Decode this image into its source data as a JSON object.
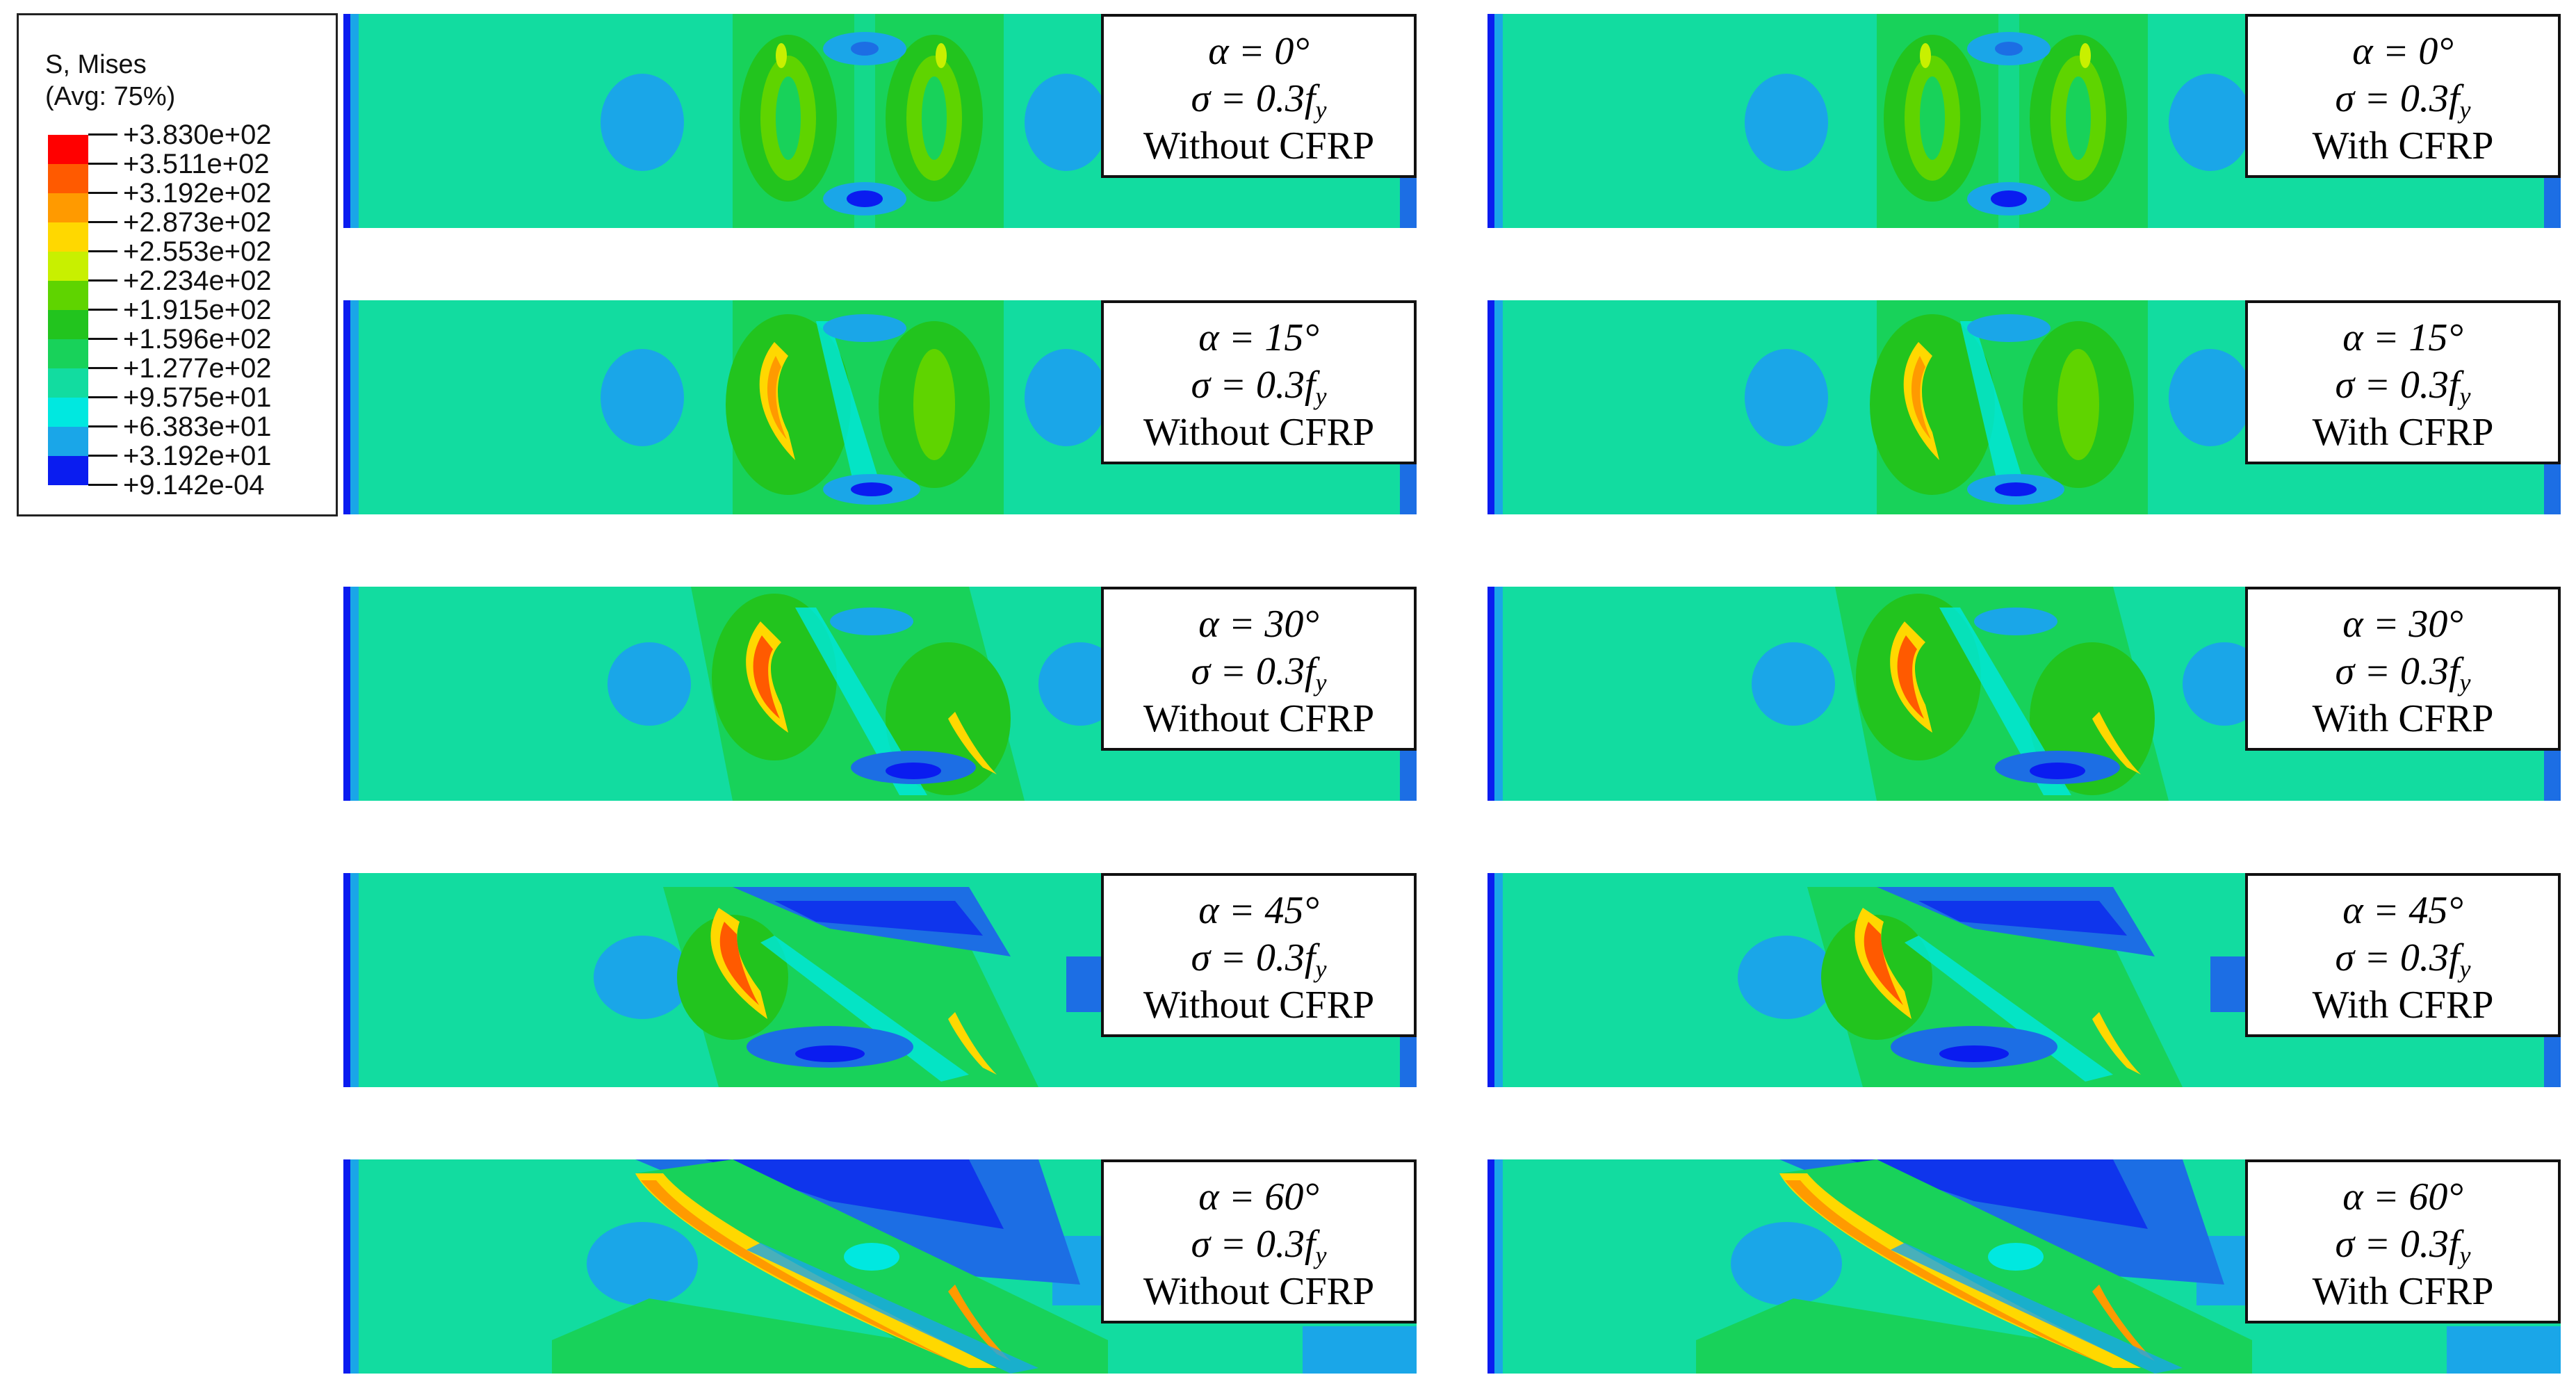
{
  "legend": {
    "title": "S, Mises",
    "subtitle": "(Avg: 75%)",
    "items": [
      {
        "value": "+3.830e+02",
        "color": "#ff0000"
      },
      {
        "value": "+3.511e+02",
        "color": "#ff5a00"
      },
      {
        "value": "+3.192e+02",
        "color": "#ff9a00"
      },
      {
        "value": "+2.873e+02",
        "color": "#ffd800"
      },
      {
        "value": "+2.553e+02",
        "color": "#c8f000"
      },
      {
        "value": "+2.234e+02",
        "color": "#5fd400"
      },
      {
        "value": "+1.915e+02",
        "color": "#22c41e"
      },
      {
        "value": "+1.596e+02",
        "color": "#18d25a"
      },
      {
        "value": "+1.277e+02",
        "color": "#12dca0"
      },
      {
        "value": "+9.575e+01",
        "color": "#00e8e0"
      },
      {
        "value": "+6.383e+01",
        "color": "#1aa6e8"
      },
      {
        "value": "+3.192e+01",
        "color": "#1c6ee4"
      },
      {
        "value": "+9.142e-04",
        "color": "#0a1cf0"
      }
    ]
  },
  "panels": [
    {
      "alpha": "α = 0°",
      "sigma_prefix": "σ = 0.3",
      "f": "f",
      "sub": "y",
      "cfrp": "Without CFRP"
    },
    {
      "alpha": "α = 0°",
      "sigma_prefix": "σ = 0.3",
      "f": "f",
      "sub": "y",
      "cfrp": "With CFRP"
    },
    {
      "alpha": "α = 15°",
      "sigma_prefix": "σ = 0.3",
      "f": "f",
      "sub": "y",
      "cfrp": "Without CFRP"
    },
    {
      "alpha": "α = 15°",
      "sigma_prefix": "σ = 0.3",
      "f": "f",
      "sub": "y",
      "cfrp": "With CFRP"
    },
    {
      "alpha": "α = 30°",
      "sigma_prefix": "σ = 0.3",
      "f": "f",
      "sub": "y",
      "cfrp": "Without CFRP"
    },
    {
      "alpha": "α = 30°",
      "sigma_prefix": "σ = 0.3",
      "f": "f",
      "sub": "y",
      "cfrp": "With CFRP"
    },
    {
      "alpha": "α = 45°",
      "sigma_prefix": "σ = 0.3",
      "f": "f",
      "sub": "y",
      "cfrp": "Without CFRP"
    },
    {
      "alpha": "α = 45°",
      "sigma_prefix": "σ = 0.3",
      "f": "f",
      "sub": "y",
      "cfrp": "With CFRP"
    },
    {
      "alpha": "α = 60°",
      "sigma_prefix": "σ = 0.3",
      "f": "f",
      "sub": "y",
      "cfrp": "Without CFRP"
    },
    {
      "alpha": "α = 60°",
      "sigma_prefix": "σ = 0.3",
      "f": "f",
      "sub": "y",
      "cfrp": "With CFRP"
    }
  ]
}
